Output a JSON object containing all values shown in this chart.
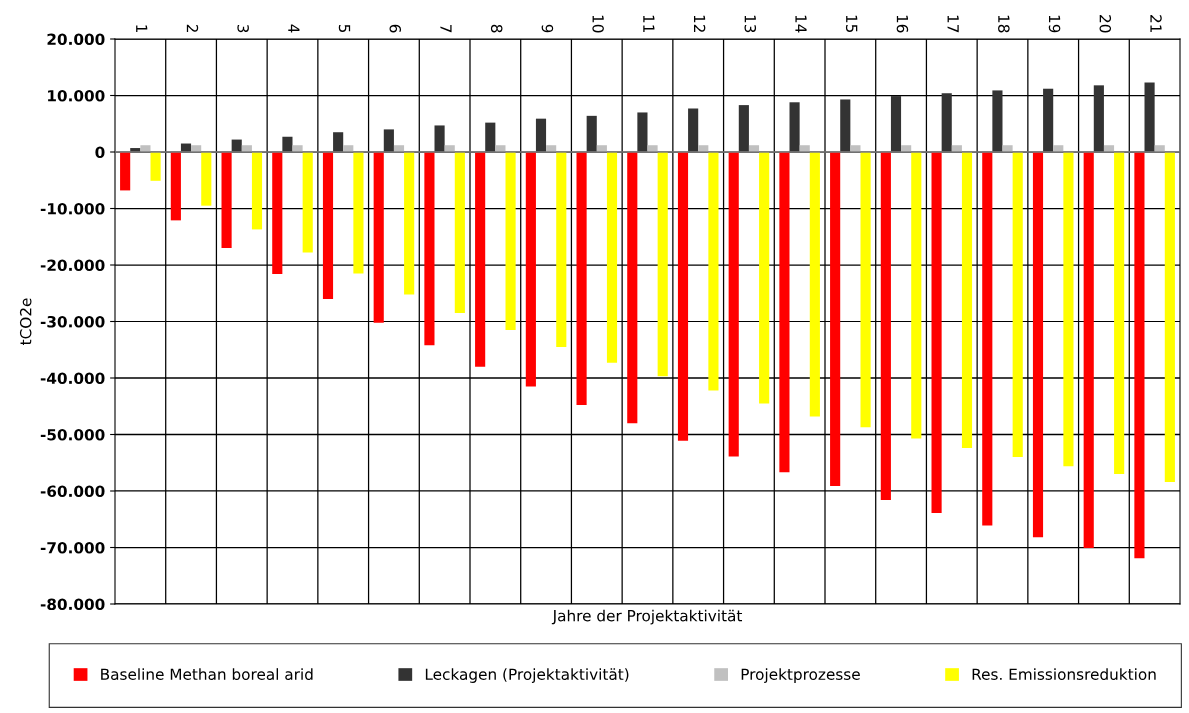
{
  "chart_data": {
    "type": "bar",
    "xlabel": "Jahre der Projektaktivität",
    "ylabel": "tCO2e",
    "categories": [
      "1",
      "2",
      "3",
      "4",
      "5",
      "6",
      "7",
      "8",
      "9",
      "10",
      "11",
      "12",
      "13",
      "14",
      "15",
      "16",
      "17",
      "18",
      "19",
      "20",
      "21"
    ],
    "series": [
      {
        "name": "Baseline Methan boreal arid",
        "color": "#ff0000",
        "values": [
          -6800,
          -12100,
          -17000,
          -21600,
          -26000,
          -30200,
          -34200,
          -38000,
          -41500,
          -44800,
          -48000,
          -51100,
          -53900,
          -56700,
          -59100,
          -61600,
          -63900,
          -66100,
          -68200,
          -70100,
          -71900
        ]
      },
      {
        "name": "Leckagen (Projektaktivität)",
        "color": "#333333",
        "values": [
          700,
          1500,
          2200,
          2700,
          3500,
          4000,
          4700,
          5200,
          5900,
          6400,
          7000,
          7700,
          8300,
          8800,
          9300,
          9900,
          10400,
          10900,
          11200,
          11800,
          12300
        ]
      },
      {
        "name": "Projektprozesse",
        "color": "#c0c0c0",
        "values": [
          1200,
          1200,
          1200,
          1200,
          1200,
          1200,
          1200,
          1200,
          1200,
          1200,
          1200,
          1200,
          1200,
          1200,
          1200,
          1200,
          1200,
          1200,
          1200,
          1200,
          1200
        ]
      },
      {
        "name": "Res. Emissionsreduktion",
        "color": "#ffff00",
        "values": [
          -5100,
          -9500,
          -13700,
          -17800,
          -21500,
          -25200,
          -28500,
          -31500,
          -34500,
          -37300,
          -39700,
          -42200,
          -44500,
          -46800,
          -48700,
          -50700,
          -52400,
          -54000,
          -55600,
          -57000,
          -58400
        ]
      }
    ],
    "ylim": [
      -80000,
      20000
    ],
    "yticks": [
      {
        "value": -80000,
        "label": "-80.000"
      },
      {
        "value": -70000,
        "label": "-70.000"
      },
      {
        "value": -60000,
        "label": "-60.000"
      },
      {
        "value": -50000,
        "label": "-50.000"
      },
      {
        "value": -40000,
        "label": "-40.000"
      },
      {
        "value": -30000,
        "label": "-30.000"
      },
      {
        "value": -20000,
        "label": "-20.000"
      },
      {
        "value": -10000,
        "label": "-10.000"
      },
      {
        "value": 0,
        "label": "0"
      },
      {
        "value": 10000,
        "label": "10.000"
      },
      {
        "value": 20000,
        "label": "20.000"
      }
    ],
    "grid": true,
    "legend": "bottom"
  }
}
